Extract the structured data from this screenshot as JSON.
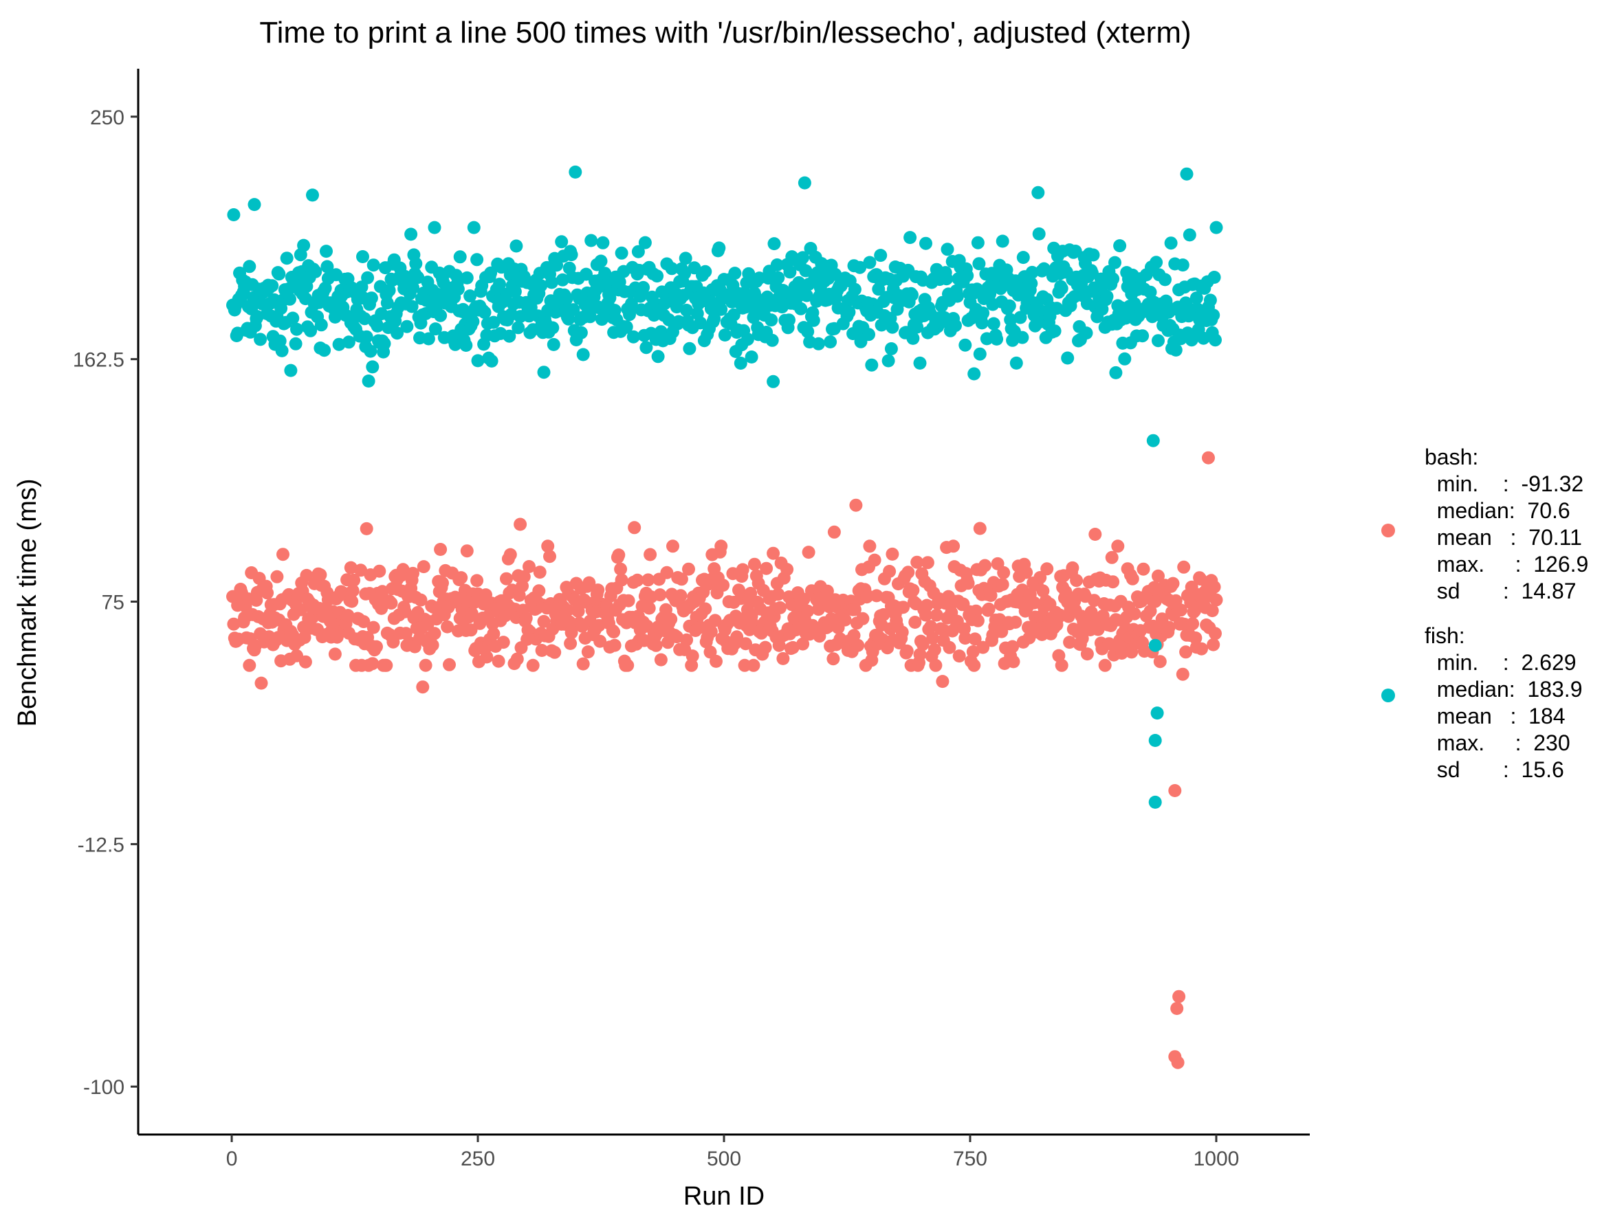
{
  "chart_data": {
    "type": "scatter",
    "title": "Time to print a line 500 times with '/usr/bin/lessecho', adjusted (xterm)",
    "xlabel": "Run ID",
    "ylabel": "Benchmark time (ms)",
    "xlim": [
      -95,
      1095
    ],
    "ylim": [
      -117.3,
      267.3
    ],
    "x_ticks": [
      0,
      250,
      500,
      750,
      1000
    ],
    "x_tick_labels": [
      "0",
      "250",
      "500",
      "750",
      "1000"
    ],
    "y_ticks": [
      -100,
      -12.5,
      75,
      162.5,
      250
    ],
    "y_tick_labels": [
      "-100",
      "-12.5",
      "75",
      "162.5",
      "250"
    ],
    "grid": false,
    "legend_position": "right",
    "series": [
      {
        "key": "bash",
        "color": "#F8766D",
        "stats_label": "bash:\n  min.    :  -91.32\n  median:  70.6\n  mean   :  70.11\n  max.     :  126.9\n  sd       :  14.87",
        "stats": {
          "min": -91.32,
          "median": 70.6,
          "mean": 70.11,
          "max": 126.9,
          "sd": 14.87
        },
        "outliers": [
          {
            "x": 992,
            "y": 126.9
          },
          {
            "x": 634,
            "y": 109.8
          },
          {
            "x": 958,
            "y": 6.8
          },
          {
            "x": 962,
            "y": -67.5
          },
          {
            "x": 960,
            "y": -71.8
          },
          {
            "x": 958,
            "y": -89.2
          },
          {
            "x": 961,
            "y": -91.32
          },
          {
            "x": 30,
            "y": 45.6
          },
          {
            "x": 194,
            "y": 44.2
          },
          {
            "x": 966,
            "y": 48.8
          },
          {
            "x": 722,
            "y": 46.2
          },
          {
            "x": 877,
            "y": 99.3
          },
          {
            "x": 293,
            "y": 102.9
          },
          {
            "x": 409,
            "y": 101.7
          },
          {
            "x": 612,
            "y": 100.1
          },
          {
            "x": 760,
            "y": 101.4
          },
          {
            "x": 137,
            "y": 101.3
          }
        ]
      },
      {
        "key": "fish",
        "color": "#00BFC4",
        "stats_label": "fish:\n  min.    :  2.629\n  median:  183.9\n  mean   :  184\n  max.     :  230\n  sd       :  15.6",
        "stats": {
          "min": 2.629,
          "median": 183.9,
          "mean": 184,
          "max": 230,
          "sd": 15.6
        },
        "outliers": [
          {
            "x": 349,
            "y": 230
          },
          {
            "x": 970,
            "y": 229.3
          },
          {
            "x": 582,
            "y": 226.1
          },
          {
            "x": 82,
            "y": 221.7
          },
          {
            "x": 819,
            "y": 222.6
          },
          {
            "x": 936,
            "y": 133.1
          },
          {
            "x": 938,
            "y": 59.2
          },
          {
            "x": 940,
            "y": 34.8
          },
          {
            "x": 938,
            "y": 24.9
          },
          {
            "x": 938,
            "y": 2.629
          },
          {
            "x": 139,
            "y": 154.6
          },
          {
            "x": 550,
            "y": 154.4
          },
          {
            "x": 754,
            "y": 157.2
          },
          {
            "x": 23,
            "y": 218.3
          },
          {
            "x": 2,
            "y": 214.6
          }
        ]
      }
    ]
  }
}
